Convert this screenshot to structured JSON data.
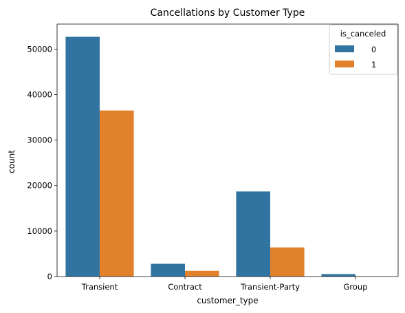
{
  "chart_data": {
    "type": "bar",
    "title": "Cancellations by Customer Type",
    "xlabel": "customer_type",
    "ylabel": "count",
    "categories": [
      "Transient",
      "Contract",
      "Transient-Party",
      "Group"
    ],
    "series": [
      {
        "name": "0",
        "values": [
          52700,
          2800,
          18700,
          550
        ],
        "color": "#3274a1"
      },
      {
        "name": "1",
        "values": [
          36500,
          1250,
          6400,
          60
        ],
        "color": "#e1812c"
      }
    ],
    "legend_title": "is_canceled",
    "legend_position": "top-right",
    "ylim": [
      0,
      55500
    ],
    "yticks": [
      0,
      10000,
      20000,
      30000,
      40000,
      50000
    ],
    "grid": false
  }
}
